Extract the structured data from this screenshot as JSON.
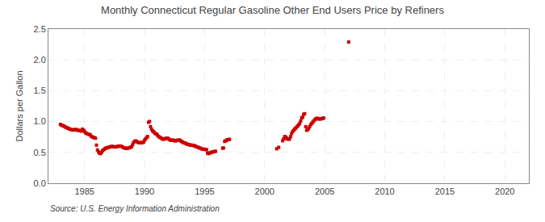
{
  "chart_data": {
    "type": "scatter",
    "title": "Monthly Connecticut Regular Gasoline Other End Users Price by Refiners",
    "ylabel": "Dollars per Gallon",
    "annotations": [
      "Source: U.S. Energy Information Administration"
    ],
    "color": "#cc0000",
    "marker": "square",
    "grid": true,
    "xlim": [
      1982,
      2022
    ],
    "ylim": [
      0.0,
      2.5
    ],
    "xticks": [
      1985,
      1990,
      1995,
      2000,
      2005,
      2010,
      2015,
      2020
    ],
    "yticks": [
      {
        "value": 0.0,
        "label": "0.0"
      },
      0.5,
      {
        "value": 1.0,
        "label": "1.0"
      },
      1.5,
      {
        "value": 2.0,
        "label": "2.0"
      },
      2.5
    ],
    "x": [
      1983.0,
      1983.08,
      1983.17,
      1983.25,
      1983.33,
      1983.42,
      1983.5,
      1983.58,
      1983.67,
      1983.75,
      1983.83,
      1983.92,
      1984.0,
      1984.08,
      1984.17,
      1984.25,
      1984.33,
      1984.42,
      1984.5,
      1984.58,
      1984.67,
      1984.75,
      1984.83,
      1984.92,
      1985.0,
      1985.08,
      1985.17,
      1985.25,
      1985.33,
      1985.42,
      1985.5,
      1985.58,
      1985.67,
      1985.75,
      1985.83,
      1985.92,
      1986.0,
      1986.08,
      1986.17,
      1986.25,
      1986.33,
      1986.42,
      1986.5,
      1986.58,
      1986.67,
      1986.75,
      1986.83,
      1986.92,
      1987.0,
      1987.08,
      1987.17,
      1987.25,
      1987.33,
      1987.42,
      1987.5,
      1987.58,
      1987.67,
      1987.75,
      1987.83,
      1987.92,
      1988.0,
      1988.08,
      1988.17,
      1988.25,
      1988.33,
      1988.42,
      1988.5,
      1988.58,
      1988.67,
      1988.75,
      1988.83,
      1988.92,
      1989.0,
      1989.08,
      1989.17,
      1989.25,
      1989.33,
      1989.42,
      1989.5,
      1989.58,
      1989.67,
      1989.75,
      1989.83,
      1989.92,
      1990.0,
      1990.08,
      1990.17,
      1990.25,
      1990.33,
      1990.42,
      1990.5,
      1990.58,
      1990.67,
      1990.75,
      1990.83,
      1990.92,
      1991.0,
      1991.08,
      1991.17,
      1991.25,
      1991.33,
      1991.42,
      1991.5,
      1991.58,
      1991.67,
      1991.75,
      1991.83,
      1991.92,
      1992.0,
      1992.08,
      1992.17,
      1992.25,
      1992.33,
      1992.42,
      1992.5,
      1992.58,
      1992.67,
      1992.75,
      1992.83,
      1992.92,
      1993.0,
      1993.08,
      1993.17,
      1993.25,
      1993.33,
      1993.42,
      1993.5,
      1993.58,
      1993.67,
      1993.75,
      1993.83,
      1993.92,
      1994.0,
      1994.08,
      1994.17,
      1994.25,
      1994.33,
      1994.42,
      1994.5,
      1994.58,
      1994.67,
      1994.75,
      1994.83,
      1994.92,
      1995.0,
      1995.08,
      1995.17,
      1995.25,
      1995.33,
      1995.42,
      1995.5,
      1995.58,
      1995.67,
      1995.75,
      1995.83,
      1995.92,
      1996.5,
      1996.58,
      1996.67,
      1996.75,
      1996.83,
      1996.92,
      1997.0,
      1997.08,
      2001.0,
      2001.17,
      2001.5,
      2001.58,
      2001.67,
      2001.75,
      2001.83,
      2001.92,
      2002.0,
      2002.08,
      2002.17,
      2002.25,
      2002.33,
      2002.42,
      2002.5,
      2002.58,
      2002.67,
      2002.75,
      2002.83,
      2002.92,
      2003.0,
      2003.08,
      2003.17,
      2003.25,
      2003.33,
      2003.42,
      2003.5,
      2003.58,
      2003.67,
      2003.75,
      2003.83,
      2003.92,
      2004.0,
      2004.08,
      2004.17,
      2004.25,
      2004.33,
      2004.42,
      2004.5,
      2004.58,
      2004.67,
      2004.75,
      2004.83,
      2004.92,
      2007.0
    ],
    "values": [
      0.956,
      0.94,
      0.938,
      0.93,
      0.92,
      0.91,
      0.905,
      0.895,
      0.888,
      0.88,
      0.875,
      0.87,
      0.865,
      0.862,
      0.868,
      0.872,
      0.87,
      0.86,
      0.858,
      0.855,
      0.85,
      0.845,
      0.878,
      0.862,
      0.842,
      0.818,
      0.808,
      0.8,
      0.795,
      0.79,
      0.782,
      0.758,
      0.75,
      0.742,
      0.738,
      0.73,
      0.618,
      0.54,
      0.508,
      0.488,
      0.48,
      0.498,
      0.528,
      0.542,
      0.552,
      0.568,
      0.572,
      0.578,
      0.58,
      0.588,
      0.592,
      0.598,
      0.598,
      0.592,
      0.588,
      0.588,
      0.592,
      0.598,
      0.6,
      0.605,
      0.602,
      0.598,
      0.588,
      0.578,
      0.572,
      0.568,
      0.562,
      0.568,
      0.572,
      0.578,
      0.582,
      0.592,
      0.622,
      0.658,
      0.678,
      0.688,
      0.678,
      0.668,
      0.658,
      0.658,
      0.658,
      0.658,
      0.66,
      0.665,
      0.698,
      0.718,
      0.738,
      0.758,
      0.988,
      1.002,
      0.918,
      0.878,
      0.848,
      0.838,
      0.818,
      0.802,
      0.798,
      0.778,
      0.758,
      0.748,
      0.738,
      0.728,
      0.718,
      0.712,
      0.718,
      0.728,
      0.725,
      0.732,
      0.718,
      0.708,
      0.698,
      0.698,
      0.698,
      0.698,
      0.688,
      0.688,
      0.692,
      0.698,
      0.698,
      0.702,
      0.688,
      0.678,
      0.668,
      0.658,
      0.652,
      0.648,
      0.638,
      0.632,
      0.628,
      0.622,
      0.618,
      0.615,
      0.618,
      0.612,
      0.608,
      0.598,
      0.592,
      0.588,
      0.578,
      0.572,
      0.568,
      0.558,
      0.555,
      0.548,
      0.552,
      0.548,
      0.542,
      0.488,
      0.48,
      0.488,
      0.498,
      0.502,
      0.508,
      0.512,
      0.515,
      0.518,
      0.568,
      0.572,
      0.678,
      0.688,
      0.698,
      0.705,
      0.708,
      0.712,
      0.558,
      0.582,
      0.688,
      0.718,
      0.758,
      0.748,
      0.728,
      0.718,
      0.712,
      0.722,
      0.758,
      0.808,
      0.838,
      0.858,
      0.878,
      0.892,
      0.912,
      0.928,
      0.948,
      0.968,
      1.008,
      1.058,
      1.072,
      1.118,
      1.128,
      0.918,
      0.858,
      0.868,
      0.888,
      0.918,
      0.948,
      0.968,
      0.988,
      1.008,
      1.028,
      1.042,
      1.052,
      1.052,
      1.042,
      1.042,
      1.042,
      1.048,
      1.052,
      1.058,
      2.29
    ]
  }
}
